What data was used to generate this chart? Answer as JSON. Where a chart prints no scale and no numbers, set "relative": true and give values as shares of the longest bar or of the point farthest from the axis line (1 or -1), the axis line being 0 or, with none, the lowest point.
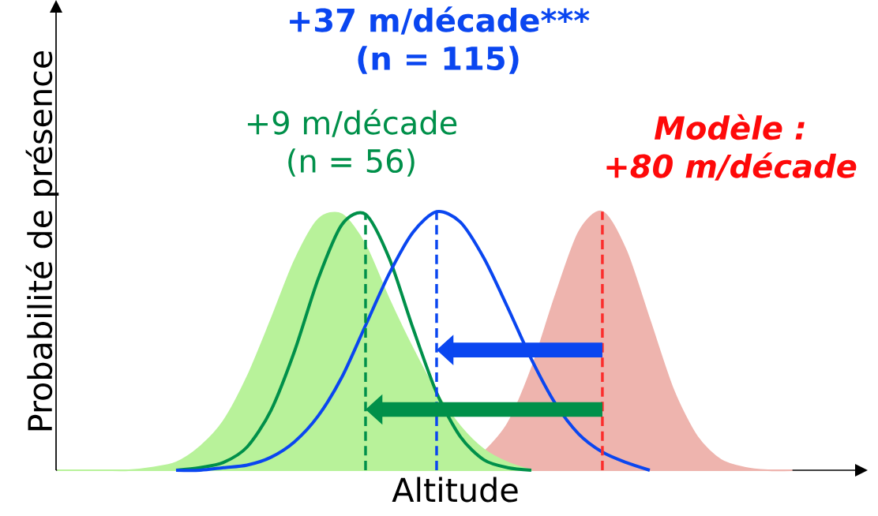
{
  "chart_data": {
    "type": "line",
    "relative": true,
    "xlabel": "Altitude",
    "ylabel": "Probabilité de présence",
    "categories": [
      null,
      null,
      null,
      null,
      null,
      null,
      null,
      null,
      null,
      null,
      null,
      null,
      null,
      null,
      null,
      null,
      null,
      null,
      null,
      null,
      null,
      null,
      null,
      null,
      null,
      null,
      null,
      null,
      null,
      null,
      null,
      null,
      null,
      null
    ],
    "series": [
      {
        "type": "area",
        "color": "#eeb4ae",
        "values": [
          null,
          null,
          null,
          null,
          null,
          null,
          null,
          null,
          null,
          null,
          null,
          null,
          null,
          null,
          null,
          null,
          null,
          null,
          0.07,
          0.18,
          0.39,
          0.67,
          0.92,
          1,
          0.85,
          0.58,
          0.31,
          0.13,
          0.04,
          0.01,
          0,
          0,
          null,
          null
        ]
      },
      {
        "type": "area",
        "color": "#b8f29a",
        "values": [
          0,
          0,
          0,
          0,
          0.01,
          0.03,
          0.09,
          0.19,
          0.36,
          0.58,
          0.81,
          0.97,
          0.99,
          0.87,
          0.66,
          0.47,
          0.3,
          0.17,
          0.08,
          0.03,
          0,
          null,
          null,
          null,
          null,
          null,
          null,
          null,
          null,
          null,
          null,
          null,
          null,
          null
        ]
      },
      {
        "color": "#00904a",
        "values": [
          null,
          null,
          null,
          null,
          null,
          0,
          0.01,
          0.03,
          0.09,
          0.23,
          0.46,
          0.74,
          0.95,
          0.99,
          0.82,
          0.55,
          0.3,
          0.13,
          0.04,
          0.01,
          0,
          null,
          null,
          null,
          null,
          null,
          null,
          null,
          null,
          null,
          null,
          null,
          null,
          null
        ]
      },
      {
        "color": "#0a46f0",
        "values": [
          null,
          null,
          null,
          null,
          null,
          0,
          0,
          0.01,
          0.02,
          0.05,
          0.11,
          0.21,
          0.36,
          0.56,
          0.76,
          0.92,
          1,
          0.96,
          0.82,
          0.63,
          0.43,
          0.26,
          0.14,
          0.07,
          0.03,
          0,
          null,
          null,
          null,
          null,
          null,
          null,
          null,
          null
        ]
      }
    ],
    "annotations": [
      "+37 m/décade***",
      "(n = 115)",
      "+9 m/décade",
      "(n = 56)",
      "Modèle :",
      "+80 m/décade"
    ]
  }
}
